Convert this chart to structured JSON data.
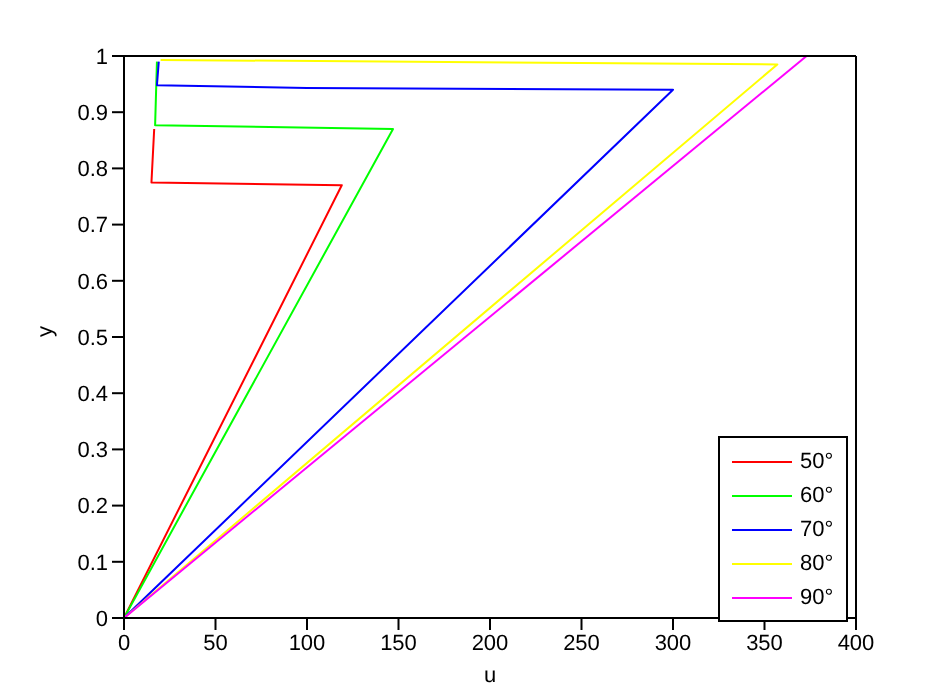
{
  "chart_data": {
    "type": "line",
    "xlabel": "u",
    "ylabel": "y",
    "xlim": [
      0,
      400
    ],
    "xticks": [
      0,
      50,
      100,
      150,
      200,
      250,
      300,
      350,
      400
    ],
    "ylim": [
      0,
      1
    ],
    "yticks": [
      0,
      0.1,
      0.2,
      0.3,
      0.4,
      0.5,
      0.6,
      0.7,
      0.8,
      0.9,
      1
    ],
    "grid": false,
    "legend": "bottom right",
    "marker": "none",
    "line_style": "solid",
    "series": [
      {
        "name": "50°",
        "color": "#ff0000",
        "x": [
          0,
          119,
          15,
          16.5
        ],
        "values": [
          0,
          0.77,
          0.775,
          0.87
        ]
      },
      {
        "name": "60°",
        "color": "#00ff00",
        "x": [
          0,
          147,
          17,
          18
        ],
        "values": [
          0,
          0.87,
          0.877,
          0.99
        ]
      },
      {
        "name": "70°",
        "color": "#0000ff",
        "x": [
          0,
          300,
          100,
          18,
          19
        ],
        "values": [
          0,
          0.94,
          0.943,
          0.948,
          0.99
        ]
      },
      {
        "name": "80°",
        "color": "#ffff00",
        "x": [
          0,
          357,
          20
        ],
        "values": [
          0,
          0.985,
          0.993
        ]
      },
      {
        "name": "90°",
        "color": "#ff00ff",
        "x": [
          0,
          373
        ],
        "values": [
          0,
          1
        ]
      }
    ]
  }
}
